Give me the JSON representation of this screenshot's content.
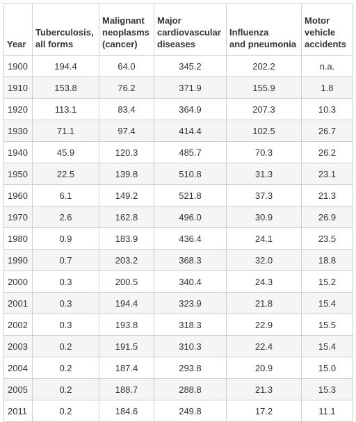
{
  "table": {
    "headers": [
      "Year",
      "Tuberculosis,\nall forms",
      "Malignant\nneoplasms\n(cancer)",
      "Major\ncardiovascular\ndiseases",
      "Influenza\nand pneumonia",
      "Motor\nvehicle\naccidents"
    ],
    "rows": [
      [
        "1900",
        "194.4",
        "64.0",
        "345.2",
        "202.2",
        "n.a."
      ],
      [
        "1910",
        "153.8",
        "76.2",
        "371.9",
        "155.9",
        "1.8"
      ],
      [
        "1920",
        "113.1",
        "83.4",
        "364.9",
        "207.3",
        "10.3"
      ],
      [
        "1930",
        "71.1",
        "97.4",
        "414.4",
        "102.5",
        "26.7"
      ],
      [
        "1940",
        "45.9",
        "120.3",
        "485.7",
        "70.3",
        "26.2"
      ],
      [
        "1950",
        "22.5",
        "139.8",
        "510.8",
        "31.3",
        "23.1"
      ],
      [
        "1960",
        "6.1",
        "149.2",
        "521.8",
        "37.3",
        "21.3"
      ],
      [
        "1970",
        "2.6",
        "162.8",
        "496.0",
        "30.9",
        "26.9"
      ],
      [
        "1980",
        "0.9",
        "183.9",
        "436.4",
        "24.1",
        "23.5"
      ],
      [
        "1990",
        "0.7",
        "203.2",
        "368.3",
        "32.0",
        "18.8"
      ],
      [
        "2000",
        "0.3",
        "200.5",
        "340.4",
        "24.3",
        "15.2"
      ],
      [
        "2001",
        "0.3",
        "194.4",
        "323.9",
        "21.8",
        "15.4"
      ],
      [
        "2002",
        "0.3",
        "193.8",
        "318.3",
        "22.9",
        "15.5"
      ],
      [
        "2003",
        "0.2",
        "191.5",
        "310.3",
        "22.4",
        "15.4"
      ],
      [
        "2004",
        "0.2",
        "187.4",
        "293.8",
        "20.9",
        "15.0"
      ],
      [
        "2005",
        "0.2",
        "188.7",
        "288.8",
        "21.3",
        "15.3"
      ],
      [
        "2011",
        "0.2",
        "184.6",
        "249.8",
        "17.2",
        "11.1"
      ]
    ]
  }
}
